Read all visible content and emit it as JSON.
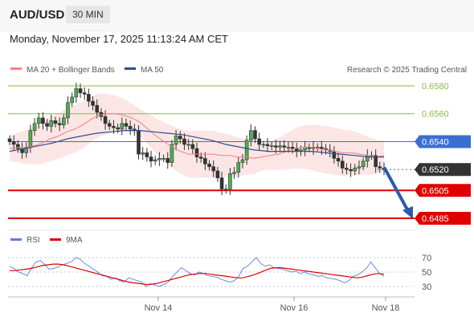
{
  "header": {
    "symbol": "AUD/USD",
    "timeframe": "30 MIN",
    "datetime": "Monday, November 17, 2025 11:13:24 AM CET",
    "credit": "Research © 2025 Trading Central"
  },
  "colors": {
    "bollinger": "#f08080",
    "ma50": "#2e4e8f",
    "green_level": "#8bbd3c",
    "blue_level": "#3a6fd0",
    "red_level": "#e00000",
    "current": "#333333",
    "arrow": "#2a5aa8",
    "rsi": "#5b7fd8",
    "rsi_ma": "#e00000"
  },
  "chart_data": [
    {
      "type": "line",
      "title": "",
      "legend": [
        "MA 20 + Bollinger Bands",
        "MA 50"
      ],
      "legend_position": "top-left",
      "x_ticks": [
        "Nov 14",
        "Nov 16",
        "Nov 18"
      ],
      "ylim": [
        0.6485,
        0.6585
      ],
      "price_levels": [
        {
          "value": "0.6580",
          "kind": "resistance"
        },
        {
          "value": "0.6560",
          "kind": "resistance"
        },
        {
          "value": "0.6540",
          "kind": "pivot"
        },
        {
          "value": "0.6520",
          "kind": "current"
        },
        {
          "value": "0.6505",
          "kind": "support"
        },
        {
          "value": "0.6485",
          "kind": "support"
        }
      ],
      "close": [
        0.654,
        0.6538,
        0.6535,
        0.6532,
        0.6536,
        0.6548,
        0.6553,
        0.6557,
        0.6553,
        0.6551,
        0.6555,
        0.6553,
        0.6552,
        0.6557,
        0.6568,
        0.6572,
        0.6578,
        0.6575,
        0.6574,
        0.6569,
        0.6566,
        0.6561,
        0.6558,
        0.6553,
        0.6551,
        0.655,
        0.6549,
        0.6553,
        0.6551,
        0.6549,
        0.6548,
        0.6531,
        0.6532,
        0.6529,
        0.6526,
        0.6527,
        0.6528,
        0.6528,
        0.6525,
        0.6538,
        0.6544,
        0.6542,
        0.6538,
        0.6538,
        0.6535,
        0.6529,
        0.6528,
        0.6524,
        0.6522,
        0.6519,
        0.6514,
        0.6506,
        0.6506,
        0.6517,
        0.6518,
        0.6525,
        0.6527,
        0.6541,
        0.6548,
        0.6542,
        0.6538,
        0.6538,
        0.6537,
        0.6537,
        0.6536,
        0.6537,
        0.6536,
        0.6536,
        0.6535,
        0.6533,
        0.6534,
        0.6536,
        0.6535,
        0.6536,
        0.6536,
        0.6535,
        0.6534,
        0.6533,
        0.6528,
        0.6526,
        0.6521,
        0.652,
        0.6519,
        0.6521,
        0.6522,
        0.6526,
        0.653,
        0.653,
        0.6522,
        0.6521,
        0.652
      ],
      "series": [
        {
          "name": "MA 20",
          "values": [
            0.6535,
            0.6536,
            0.6536,
            0.6537,
            0.6539,
            0.6542,
            0.6544,
            0.6547,
            0.6549,
            0.6552,
            0.6556,
            0.6559,
            0.656,
            0.656,
            0.6559,
            0.6557,
            0.6554,
            0.6549,
            0.6544,
            0.654,
            0.6536,
            0.6533,
            0.6531,
            0.6531,
            0.6531,
            0.6531,
            0.653,
            0.653,
            0.6529,
            0.6529,
            0.6528,
            0.6529,
            0.653,
            0.6531,
            0.6533,
            0.6535,
            0.6536,
            0.6536,
            0.6535,
            0.6534,
            0.6533,
            0.6532,
            0.6532,
            0.6531,
            0.653,
            0.6529,
            0.653
          ]
        },
        {
          "name": "MA 50",
          "values": [
            0.6533,
            0.6535,
            0.6537,
            0.6539,
            0.6542,
            0.6544,
            0.6546,
            0.6547,
            0.6548,
            0.6548,
            0.6547,
            0.6546,
            0.6545,
            0.6543,
            0.6541,
            0.6538,
            0.6536,
            0.6534,
            0.6533,
            0.6533,
            0.6533,
            0.6533,
            0.6532,
            0.6531,
            0.653,
            0.6529,
            0.6529
          ]
        }
      ]
    },
    {
      "type": "line",
      "title": "",
      "legend": [
        "RSI",
        "9MA"
      ],
      "legend_position": "top-left",
      "y_ticks": [
        "70",
        "50",
        "30"
      ],
      "ylim": [
        20,
        80
      ],
      "x_ticks": [
        "Nov 14",
        "Nov 16",
        "Nov 18"
      ],
      "series": [
        {
          "name": "RSI",
          "values": [
            58,
            55,
            50,
            48,
            45,
            56,
            64,
            66,
            60,
            54,
            55,
            57,
            60,
            62,
            64,
            70,
            68,
            62,
            58,
            54,
            50,
            45,
            44,
            40,
            42,
            38,
            36,
            42,
            40,
            38,
            36,
            30,
            34,
            32,
            30,
            33,
            36,
            44,
            50,
            56,
            52,
            48,
            46,
            50,
            48,
            45,
            44,
            43,
            40,
            38,
            36,
            38,
            44,
            55,
            58,
            64,
            70,
            62,
            58,
            60,
            56,
            55,
            54,
            52,
            50,
            51,
            48,
            50,
            47,
            46,
            44,
            45,
            42,
            41,
            40,
            38,
            35,
            38,
            44,
            46,
            50,
            55,
            64,
            56,
            48,
            44
          ]
        },
        {
          "name": "9MA",
          "values": [
            52,
            52,
            53,
            54,
            55,
            57,
            59,
            60,
            61,
            61,
            60,
            58,
            56,
            54,
            52,
            50,
            48,
            46,
            44,
            42,
            40,
            38,
            36,
            35,
            34,
            33,
            33,
            34,
            36,
            38,
            40,
            42,
            44,
            46,
            47,
            48,
            48,
            47,
            46,
            45,
            44,
            43,
            42,
            42,
            44,
            46,
            49,
            52,
            55,
            56,
            56,
            55,
            54,
            53,
            52,
            51,
            50,
            49,
            48,
            47,
            46,
            45,
            44,
            43,
            42,
            43,
            45,
            47,
            48,
            47
          ]
        }
      ]
    }
  ]
}
